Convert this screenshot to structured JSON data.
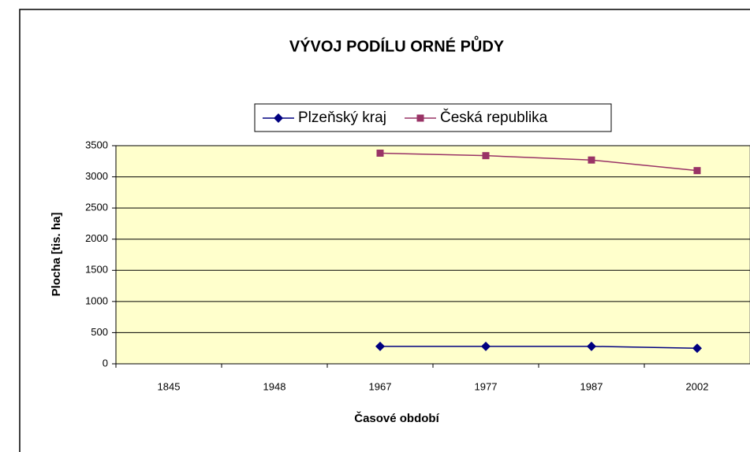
{
  "chart_data": {
    "type": "line",
    "title": "VÝVOJ  PODÍLU ORNÉ PŮDY",
    "x_label": "Časové období",
    "y_label": "Plocha [tis. ha]",
    "categories": [
      "1845",
      "1948",
      "1967",
      "1977",
      "1987",
      "2002"
    ],
    "series": [
      {
        "name": "Plzeňský kraj",
        "color": "#000080",
        "marker": "diamond",
        "values": [
          null,
          null,
          280,
          280,
          280,
          250
        ]
      },
      {
        "name": "Česká republika",
        "color": "#993366",
        "marker": "square",
        "values": [
          null,
          null,
          3380,
          3340,
          3270,
          3100
        ]
      }
    ],
    "ylim": [
      0,
      3500
    ],
    "yticks": [
      0,
      500,
      1000,
      1500,
      2000,
      2500,
      3000,
      3500
    ],
    "grid": true,
    "legend": "top",
    "plot_background": "#ffffcc"
  }
}
